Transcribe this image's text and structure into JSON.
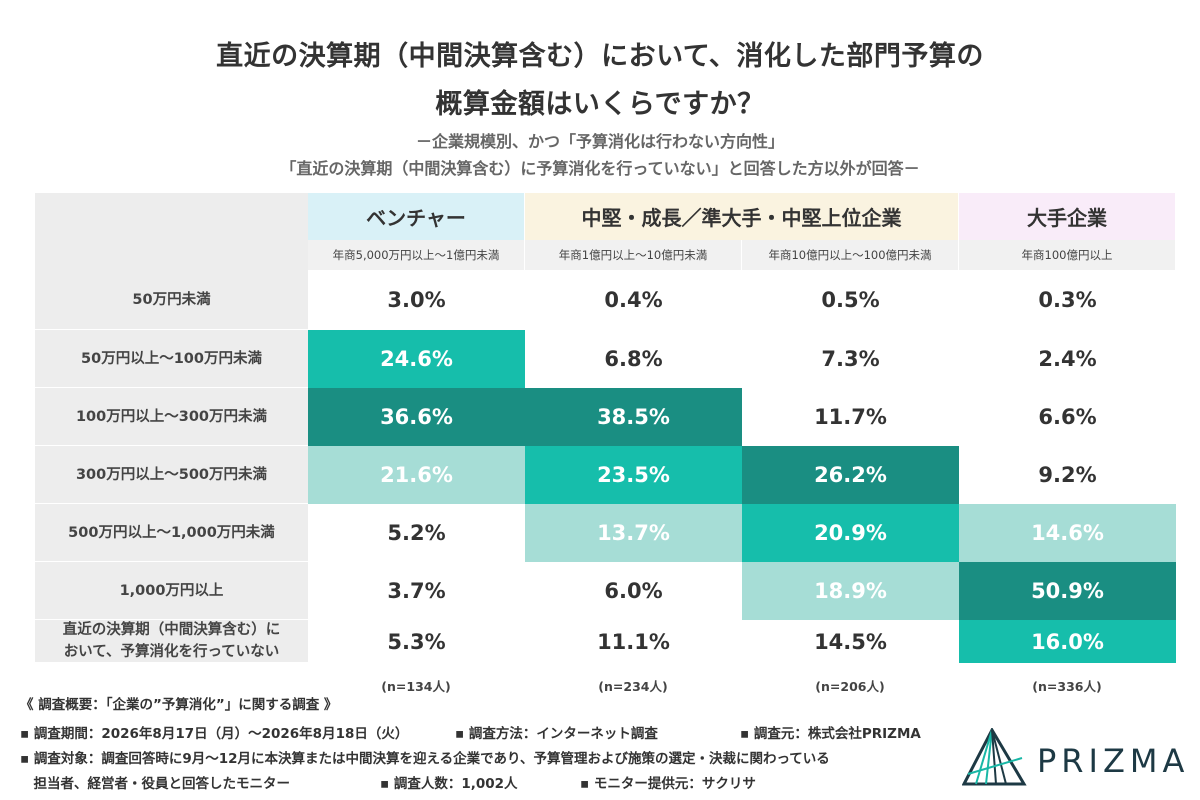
{
  "title_line1": "直近の決算期（中間決算含む）において、消化した部門予算の",
  "title_line2": "概算金額はいくらですか？",
  "subtitle_line1": "－企業規模別、かつ「予算消化は行わない方向性」",
  "subtitle_line2": "「直近の決算期（中間決算含む）に予算消化を行っていない」と回答した方以外が回答－",
  "header_colors": {
    "venture": "#d9f1f7",
    "mid": "#faf3e0",
    "large": "#f9ecf9"
  },
  "color_scale": {
    "white": "#ffffff",
    "light": "#a6ddd6",
    "medium": "#16beab",
    "dark": "#1a8e82"
  },
  "chart_data": {
    "type": "table",
    "groups": [
      {
        "label": "ベンチャー",
        "span": 1
      },
      {
        "label": "中堅・成長／準大手・中堅上位企業",
        "span": 2
      },
      {
        "label": "大手企業",
        "span": 1
      }
    ],
    "columns": [
      "年商5,000万円以上～1億円未満",
      "年商1億円以上～10億円未満",
      "年商10億円以上～100億円未満",
      "年商100億円以上"
    ],
    "rows": [
      {
        "label": "50万円未満",
        "values": [
          "3.0%",
          "0.4%",
          "0.5%",
          "0.3%"
        ],
        "shade": [
          "white",
          "white",
          "white",
          "white"
        ]
      },
      {
        "label": "50万円以上～100万円未満",
        "values": [
          "24.6%",
          "6.8%",
          "7.3%",
          "2.4%"
        ],
        "shade": [
          "medium",
          "white",
          "white",
          "white"
        ]
      },
      {
        "label": "100万円以上～300万円未満",
        "values": [
          "36.6%",
          "38.5%",
          "11.7%",
          "6.6%"
        ],
        "shade": [
          "dark",
          "dark",
          "white",
          "white"
        ]
      },
      {
        "label": "300万円以上～500万円未満",
        "values": [
          "21.6%",
          "23.5%",
          "26.2%",
          "9.2%"
        ],
        "shade": [
          "light",
          "medium",
          "dark",
          "white"
        ]
      },
      {
        "label": "500万円以上～1,000万円未満",
        "values": [
          "5.2%",
          "13.7%",
          "20.9%",
          "14.6%"
        ],
        "shade": [
          "white",
          "light",
          "medium",
          "light"
        ]
      },
      {
        "label": "1,000万円以上",
        "values": [
          "3.7%",
          "6.0%",
          "18.9%",
          "50.9%"
        ],
        "shade": [
          "white",
          "white",
          "light",
          "dark"
        ]
      },
      {
        "label": "直近の決算期（中間決算含む）において、予算消化を行っていない",
        "label_lines": [
          "直近の決算期（中間決算含む）に",
          "おいて、予算消化を行っていない"
        ],
        "values": [
          "5.3%",
          "11.1%",
          "14.5%",
          "16.0%"
        ],
        "shade": [
          "white",
          "white",
          "white",
          "medium"
        ]
      }
    ],
    "n": [
      "(n=134人)",
      "(n=234人)",
      "(n=206人)",
      "(n=336人)"
    ]
  },
  "footer": {
    "line1": "《 調査概要：「企業の”予算消化”」に関する調査 》",
    "line2a": "▪ 調査期間：2026年8月17日（月）～2026年8月18日（火）",
    "line2b": "▪ 調査方法：インターネット調査",
    "line2c": "▪ 調査元：株式会社PRIZMA",
    "line3": "▪ 調査対象：調査回答時に9月～12月に本決算または中間決算を迎える企業であり、予算管理および施策の選定・決裁に関わっている",
    "line4a": "　担当者、経営者・役員と回答したモニター",
    "line4b": "▪ 調査人数：1,002人",
    "line4c": "▪ モニター提供元：サクリサ"
  },
  "logo_text": "PRIZMA"
}
